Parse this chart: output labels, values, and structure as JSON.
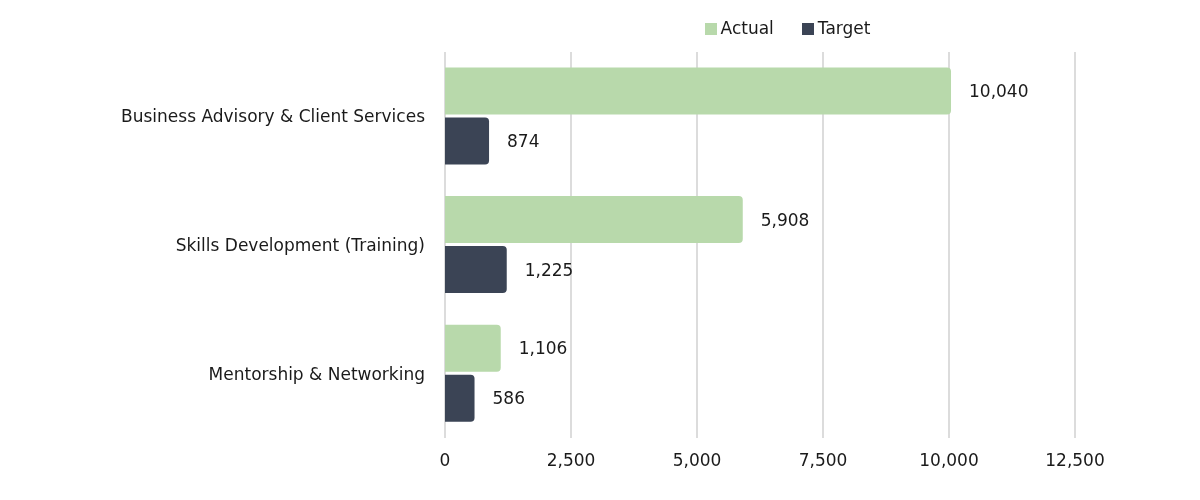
{
  "chart_data": {
    "type": "bar",
    "orientation": "horizontal",
    "categories": [
      "Business Advisory & Client Services",
      "Skills Development (Training)",
      "Mentorship & Networking"
    ],
    "series": [
      {
        "name": "Actual",
        "color": "#b8d9ab",
        "values": [
          10040,
          5908,
          1106
        ],
        "value_labels": [
          "10,040",
          "5,908",
          "1,106"
        ]
      },
      {
        "name": "Target",
        "color": "#3b4455",
        "values": [
          874,
          1225,
          586
        ],
        "value_labels": [
          "874",
          "1,225",
          "586"
        ]
      }
    ],
    "xlim": [
      0,
      12500
    ],
    "xticks": [
      0,
      {
        "value": 2500,
        "label": "2,500"
      },
      {
        "value": 5000,
        "label": "5,000"
      },
      {
        "value": 7500,
        "label": "7,500"
      },
      {
        "value": 10000,
        "label": "10,000"
      },
      {
        "value": 12500,
        "label": "12,500"
      }
    ],
    "grid": "x",
    "legend": "top"
  }
}
